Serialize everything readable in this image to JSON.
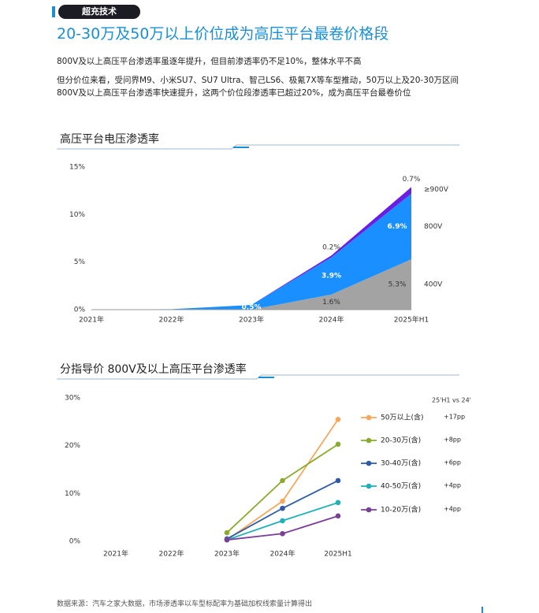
{
  "tag": "超充技术",
  "title": "20-30万及50万以上价位成为高压平台最卷价格段",
  "paragraphs": [
    "800V及以上高压平台渗透率虽逐年提升，但目前渗透率仍不足10%，整体水平不高",
    "但分价位来看，受问界M9、小米SU7、SU7 Ultra、智己LS6、极氪7X等车型推动，50万以上及20-30万区间800V及以上高压平台渗透率快速提升，这两个价位段渗透率已超过20%，成为高压平台最卷价位"
  ],
  "source": "数据来源：汽车之家大数据，市场渗透率以车型标配率为基础加权线索量计算得出",
  "chart_data": [
    {
      "type": "area",
      "stacked": true,
      "title": "高压平台电压渗透率",
      "categories": [
        "2021年",
        "2022年",
        "2023年",
        "2024年",
        "2025年H1"
      ],
      "series": [
        {
          "name": "400V",
          "color": "#a3a3a3",
          "values": [
            0,
            0,
            0,
            1.6,
            5.3
          ],
          "value_labels": [
            null,
            null,
            null,
            "1.6%",
            "5.3%"
          ]
        },
        {
          "name": "800V",
          "color": "#1a8fff",
          "values": [
            0,
            0.05,
            0.5,
            3.9,
            6.9
          ],
          "value_labels": [
            null,
            null,
            "0.5%",
            "3.9%",
            "6.9%"
          ]
        },
        {
          "name": "≥900V",
          "color": "#6a1ee0",
          "values": [
            0,
            0,
            0,
            0.2,
            0.7
          ],
          "value_labels": [
            null,
            null,
            null,
            "0.2%",
            "0.7%"
          ]
        }
      ],
      "ylim": [
        0,
        15
      ],
      "yticks": [
        {
          "value": 0,
          "label": "0%"
        },
        {
          "value": 5,
          "label": "5%"
        },
        {
          "value": 10,
          "label": "10%"
        },
        {
          "value": 15,
          "label": "15%"
        }
      ],
      "grid": false
    },
    {
      "type": "line",
      "title": "分指导价 800V及以上高压平台渗透率",
      "categories": [
        "2021年",
        "2022年",
        "2023年",
        "2024年",
        "2025H1"
      ],
      "legend_title": "25'H1 vs 24'",
      "series": [
        {
          "name": "50万以上(含)",
          "color": "#f5a85a",
          "values": [
            null,
            null,
            0.3,
            8.4,
            25.5
          ],
          "change": "+17pp"
        },
        {
          "name": "20-30万(含)",
          "color": "#8aab2f",
          "values": [
            null,
            null,
            1.8,
            12.7,
            20.3
          ],
          "change": "+8pp"
        },
        {
          "name": "30-40万(含)",
          "color": "#2e5aa8",
          "values": [
            null,
            null,
            0.5,
            6.9,
            12.7
          ],
          "change": "+6pp"
        },
        {
          "name": "40-50万(含)",
          "color": "#1fb0b8",
          "values": [
            null,
            null,
            0.3,
            4.3,
            8.1
          ],
          "change": "+4pp"
        },
        {
          "name": "10-20万(含)",
          "color": "#7b3f9a",
          "values": [
            null,
            null,
            0.3,
            1.6,
            5.3
          ],
          "change": "+4pp"
        }
      ],
      "ylim": [
        0,
        30
      ],
      "yticks": [
        {
          "value": 0,
          "label": "0%"
        },
        {
          "value": 10,
          "label": "10%"
        },
        {
          "value": 20,
          "label": "20%"
        },
        {
          "value": 30,
          "label": "30%"
        }
      ],
      "grid": false
    }
  ]
}
